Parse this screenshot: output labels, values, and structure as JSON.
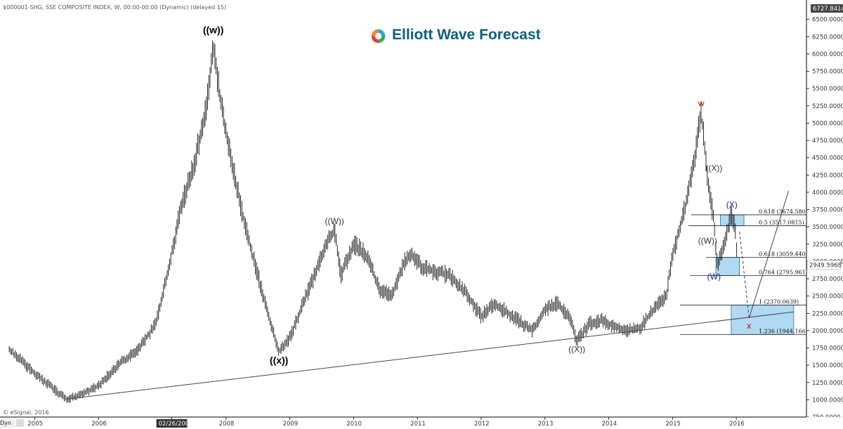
{
  "header": {
    "symbol_line": "$000001-SHG, SSE COMPOSITE INDEX, W, 00:00-00:00 (Dynamic) (delayed 15)"
  },
  "brand": {
    "name": "Elliott Wave Forecast",
    "color": "#0d5f82",
    "icon": "elliott-wave-logo-icon"
  },
  "footer": {
    "copyright": "© eSignal, 2016",
    "dyn_button": "Dyn"
  },
  "chart_data": {
    "type": "bar",
    "title": "",
    "x_ticks": [
      "2005",
      "2006",
      "02/26/2007",
      "2008",
      "2009",
      "2010",
      "2011",
      "2012",
      "2013",
      "2014",
      "2015",
      "2016"
    ],
    "y_ticks": [
      "6500.0000",
      "6250.0000",
      "6000.0000",
      "5750.0000",
      "5500.0000",
      "5250.0000",
      "5000.0000",
      "4750.0000",
      "4500.0000",
      "4250.0000",
      "4000.0000",
      "3750.0000",
      "3500.0000",
      "3250.0000",
      "3000.0000",
      "2750.0000",
      "2500.0000",
      "2250.0000",
      "2000.0000",
      "1750.0000",
      "1500.0000",
      "1250.0000",
      "1000.0000",
      "750.0000"
    ],
    "y_range": [
      750,
      6730
    ],
    "x_range": [
      2004.5,
      2017.1
    ],
    "last_value_label": "6727.8414",
    "current_price_label": "2949.5968",
    "series": [
      {
        "points": [
          [
            2004.6,
            1720
          ],
          [
            2004.8,
            1560
          ],
          [
            2005.0,
            1380
          ],
          [
            2005.2,
            1230
          ],
          [
            2005.4,
            1080
          ],
          [
            2005.5,
            1010
          ],
          [
            2005.7,
            1070
          ],
          [
            2006.0,
            1200
          ],
          [
            2006.3,
            1500
          ],
          [
            2006.6,
            1700
          ],
          [
            2006.9,
            2100
          ],
          [
            2007.1,
            2900
          ],
          [
            2007.3,
            3800
          ],
          [
            2007.5,
            4400
          ],
          [
            2007.7,
            5300
          ],
          [
            2007.8,
            6100
          ],
          [
            2007.95,
            5100
          ],
          [
            2008.1,
            4400
          ],
          [
            2008.3,
            3500
          ],
          [
            2008.5,
            2800
          ],
          [
            2008.7,
            2100
          ],
          [
            2008.83,
            1700
          ],
          [
            2009.0,
            1900
          ],
          [
            2009.3,
            2600
          ],
          [
            2009.6,
            3300
          ],
          [
            2009.7,
            3460
          ],
          [
            2009.8,
            2800
          ],
          [
            2010.0,
            3250
          ],
          [
            2010.2,
            3100
          ],
          [
            2010.4,
            2600
          ],
          [
            2010.6,
            2500
          ],
          [
            2010.8,
            3000
          ],
          [
            2010.9,
            3100
          ],
          [
            2011.1,
            2900
          ],
          [
            2011.3,
            2850
          ],
          [
            2011.5,
            2800
          ],
          [
            2011.8,
            2500
          ],
          [
            2012.0,
            2200
          ],
          [
            2012.2,
            2400
          ],
          [
            2012.5,
            2200
          ],
          [
            2012.8,
            2000
          ],
          [
            2013.0,
            2300
          ],
          [
            2013.2,
            2400
          ],
          [
            2013.4,
            2150
          ],
          [
            2013.5,
            1850
          ],
          [
            2013.7,
            2100
          ],
          [
            2013.9,
            2150
          ],
          [
            2014.1,
            2050
          ],
          [
            2014.3,
            2000
          ],
          [
            2014.5,
            2050
          ],
          [
            2014.7,
            2300
          ],
          [
            2014.9,
            2500
          ],
          [
            2015.0,
            3100
          ],
          [
            2015.2,
            3800
          ],
          [
            2015.35,
            4500
          ],
          [
            2015.45,
            5166
          ],
          [
            2015.55,
            4200
          ],
          [
            2015.65,
            3600
          ],
          [
            2015.7,
            2950
          ],
          [
            2015.8,
            3200
          ],
          [
            2015.92,
            3680
          ],
          [
            2015.98,
            3500
          ],
          [
            2016.02,
            2950
          ]
        ]
      }
    ],
    "fib_levels": [
      {
        "label": "0.618 (3674.5803)",
        "value": 3674.58
      },
      {
        "label": "0.5 (3517.0815)",
        "value": 3517.08
      },
      {
        "label": "0.618 (3059.4405)",
        "value": 3059.44
      },
      {
        "label": "0.764 (2795.9615)",
        "value": 2795.96
      },
      {
        "label": "1 (2370.0639)",
        "value": 2370.06
      },
      {
        "label": "1.236 (1944.1663)",
        "value": 1944.17
      }
    ],
    "wave_labels": [
      {
        "text": "((w))",
        "x": 2007.8,
        "y": 6300,
        "color": "#000000"
      },
      {
        "text": "((x))",
        "x": 2008.83,
        "y": 1520,
        "color": "#000000"
      },
      {
        "text": "((W))",
        "x": 2009.7,
        "y": 3540,
        "color": "#333333"
      },
      {
        "text": "((X))",
        "x": 2013.5,
        "y": 1690,
        "color": "#333333"
      },
      {
        "text": "w",
        "x": 2015.45,
        "y": 5250,
        "color": "#cc0000"
      },
      {
        "text": "((X))",
        "x": 2015.65,
        "y": 4310,
        "color": "#333333"
      },
      {
        "text": "((W))",
        "x": 2015.55,
        "y": 3260,
        "color": "#333333"
      },
      {
        "text": "(X)",
        "x": 2015.93,
        "y": 3780,
        "color": "#1a1a99"
      },
      {
        "text": "(W)",
        "x": 2015.65,
        "y": 2740,
        "color": "#1a1a99"
      },
      {
        "text": "x",
        "x": 2016.2,
        "y": 2030,
        "color": "#cc0000"
      }
    ],
    "trendline": {
      "from": [
        2005.5,
        1010
      ],
      "to": [
        2016.9,
        2270
      ]
    }
  }
}
